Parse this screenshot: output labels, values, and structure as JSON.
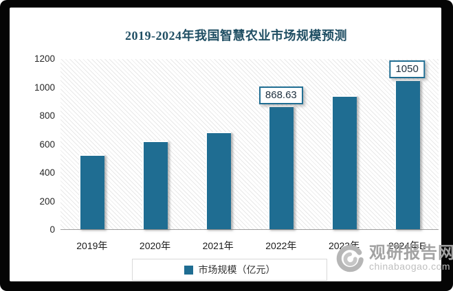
{
  "title": "2019-2024年我国智慧农业市场规模预测",
  "legend": {
    "label": "市场规模（亿元）"
  },
  "watermark": {
    "name": "观研报告网",
    "url": "chinabaogao.com",
    "logo": "swirl-logo"
  },
  "colors": {
    "bar": "#1f6d92",
    "title_text": "#1f4e63",
    "label_box_border": "#1f6d92",
    "axis_line": "#9d9d9d",
    "frame": "#050505",
    "watermark_gray": "#a2a2a2"
  },
  "chart_data": {
    "type": "bar",
    "title": "2019-2024年我国智慧农业市场规模预测",
    "series_name": "市场规模（亿元）",
    "categories": [
      "2019年",
      "2020年",
      "2021年",
      "2022年",
      "2023年",
      "2024年E"
    ],
    "values": [
      525,
      620,
      685,
      868.63,
      940,
      1050
    ],
    "point_labels": [
      "",
      "",
      "",
      "868.63",
      "",
      "1050"
    ],
    "xlabel": "",
    "ylabel": "",
    "ylim": [
      0,
      1200
    ],
    "yticks": [
      0,
      200,
      400,
      600,
      800,
      1000,
      1200
    ],
    "grid": false,
    "legend_position": "bottom",
    "plot_background": "diagonal-hatch"
  }
}
